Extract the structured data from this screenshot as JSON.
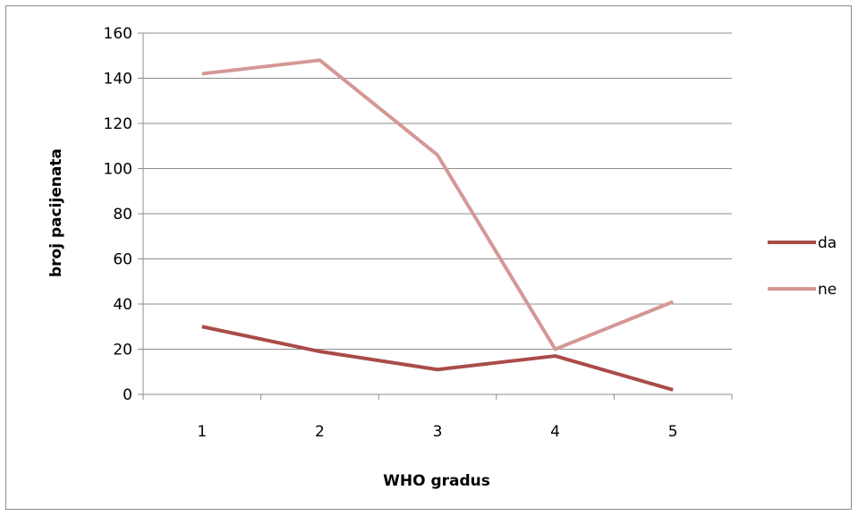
{
  "chart_data": {
    "type": "line",
    "title": "",
    "xlabel": "WHO gradus",
    "ylabel": "broj pacijenata",
    "categories": [
      "1",
      "2",
      "3",
      "4",
      "5"
    ],
    "ylim": [
      0,
      160
    ],
    "yticks": [
      0,
      20,
      40,
      60,
      80,
      100,
      120,
      140,
      160
    ],
    "grid": "horizontal",
    "legend_position": "right",
    "series": [
      {
        "name": "da",
        "values": [
          30,
          19,
          11,
          17,
          2
        ],
        "color": "#a94c49"
      },
      {
        "name": "ne",
        "values": [
          142,
          148,
          106,
          20,
          41
        ],
        "color": "#d49896"
      }
    ]
  },
  "colors": {
    "gridline": "#8c8c8c",
    "axis": "#8c8c8c",
    "frame": "#8c8c8c"
  }
}
